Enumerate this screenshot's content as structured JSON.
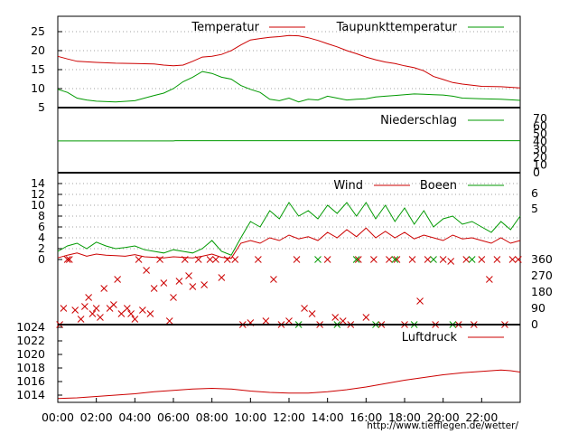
{
  "colors": {
    "temperature": "#cc0000",
    "dewpoint": "#009900",
    "precipitation": "#009900",
    "wind": "#cc0000",
    "gusts": "#009900",
    "direction_wind": "#cc0000",
    "direction_gusts": "#009900",
    "pressure": "#cc0000"
  },
  "credit": "http://www.tiefflegen.de/wetter/",
  "chart_data": [
    {
      "type": "line",
      "panel": "temperature",
      "x_unit": "hours",
      "x_range": [
        0,
        24
      ],
      "x_ticks": [
        "00:00",
        "02:00",
        "04:00",
        "06:00",
        "08:00",
        "10:00",
        "12:00",
        "14:00",
        "16:00",
        "18:00",
        "20:00",
        "22:00"
      ],
      "ylim": [
        5,
        28
      ],
      "y_ticks": [
        "5",
        "10",
        "15",
        "20",
        "25"
      ],
      "grid": true,
      "legend_position": "top",
      "series": [
        {
          "name": "Temperatur",
          "color": "#cc0000",
          "x": [
            0,
            0.5,
            1,
            2,
            3,
            4,
            5,
            5.5,
            6,
            6.5,
            7,
            7.5,
            8,
            8.5,
            9,
            9.5,
            10,
            10.5,
            11,
            11.5,
            12,
            12.5,
            13,
            13.5,
            14,
            14.5,
            15,
            15.5,
            16,
            16.5,
            17,
            17.5,
            18,
            18.5,
            19,
            19.5,
            20,
            20.5,
            21,
            22,
            23,
            24
          ],
          "y": [
            18.5,
            17.8,
            17.2,
            16.9,
            16.7,
            16.6,
            16.5,
            16.2,
            16.0,
            16.2,
            17.2,
            18.3,
            18.5,
            19.0,
            20.0,
            21.5,
            22.8,
            23.2,
            23.5,
            23.7,
            24.0,
            23.9,
            23.4,
            22.7,
            21.8,
            21.0,
            20.0,
            19.2,
            18.3,
            17.6,
            17.0,
            16.6,
            16.0,
            15.5,
            14.7,
            13.2,
            12.4,
            11.6,
            11.2,
            10.6,
            10.5,
            10.2
          ]
        },
        {
          "name": "Taupunkttemperatur",
          "color": "#009900",
          "x": [
            0,
            0.5,
            1,
            1.5,
            2,
            3,
            4,
            5,
            5.5,
            6,
            6.5,
            7,
            7.5,
            8,
            8.5,
            9,
            9.5,
            10,
            10.5,
            11,
            11.5,
            12,
            12.5,
            13,
            13.5,
            14,
            14.5,
            15,
            15.5,
            16,
            16.5,
            17,
            17.5,
            18,
            18.5,
            19,
            19.5,
            20,
            20.5,
            21,
            22,
            23,
            24
          ],
          "y": [
            9.8,
            9.0,
            7.5,
            7.0,
            6.7,
            6.5,
            6.8,
            8.2,
            8.8,
            10.0,
            11.8,
            13.0,
            14.5,
            14.0,
            13.0,
            12.5,
            10.8,
            9.8,
            9.0,
            7.2,
            6.8,
            7.5,
            6.5,
            7.2,
            7.0,
            8.0,
            7.5,
            7.0,
            7.2,
            7.3,
            7.8,
            8.0,
            8.2,
            8.4,
            8.6,
            8.5,
            8.4,
            8.3,
            8.0,
            7.5,
            7.3,
            7.2,
            6.9
          ]
        }
      ]
    },
    {
      "type": "line",
      "panel": "precipitation",
      "ylim": [
        0,
        70
      ],
      "y_ticks": [
        "0",
        "10",
        "20",
        "30",
        "40",
        "50",
        "60",
        "70"
      ],
      "y_axis_side": "right",
      "legend_position": "top",
      "series": [
        {
          "name": "Niederschlag",
          "color": "#009900",
          "x": [
            0,
            6,
            6.1,
            24
          ],
          "y": [
            41,
            41,
            41.3,
            41.3
          ]
        }
      ]
    },
    {
      "type": "line",
      "panel": "wind",
      "ylim": [
        0,
        15
      ],
      "y_ticks": [
        "0",
        "2",
        "4",
        "6",
        "8",
        "10",
        "12",
        "14"
      ],
      "y_ticks_right": [
        "5",
        "6"
      ],
      "grid": true,
      "legend_position": "top",
      "series": [
        {
          "name": "Wind",
          "color": "#cc0000",
          "x": [
            0,
            0.5,
            1,
            1.5,
            2,
            2.5,
            3,
            3.5,
            4,
            4.5,
            5,
            5.5,
            6,
            6.5,
            7,
            7.5,
            8,
            8.5,
            9,
            9.5,
            10,
            10.5,
            11,
            11.5,
            12,
            12.5,
            13,
            13.5,
            14,
            14.5,
            15,
            15.5,
            16,
            16.5,
            17,
            17.5,
            18,
            18.5,
            19,
            19.5,
            20,
            20.5,
            21,
            21.5,
            22,
            22.5,
            23,
            23.5,
            24
          ],
          "y": [
            0.3,
            0.8,
            1.2,
            0.6,
            1.0,
            0.8,
            0.7,
            0.6,
            0.9,
            0.5,
            0.4,
            0.3,
            0.5,
            0.4,
            0.3,
            0.6,
            1.0,
            0.4,
            0.2,
            3.0,
            3.5,
            3.0,
            4.0,
            3.5,
            4.5,
            3.8,
            4.2,
            3.5,
            5.0,
            4.0,
            5.5,
            4.2,
            5.8,
            4.0,
            5.2,
            4.0,
            5.0,
            3.8,
            4.5,
            4.0,
            3.5,
            4.5,
            3.8,
            4.0,
            3.5,
            3.0,
            4.0,
            3.0,
            3.5
          ]
        },
        {
          "name": "Boeen",
          "color": "#009900",
          "x": [
            0,
            0.5,
            1,
            1.5,
            2,
            2.5,
            3,
            3.5,
            4,
            4.5,
            5,
            5.5,
            6,
            6.5,
            7,
            7.5,
            8,
            8.5,
            9,
            9.5,
            10,
            10.5,
            11,
            11.5,
            12,
            12.5,
            13,
            13.5,
            14,
            14.5,
            15,
            15.5,
            16,
            16.5,
            17,
            17.5,
            18,
            18.5,
            19,
            19.5,
            20,
            20.5,
            21,
            21.5,
            22,
            22.5,
            23,
            23.5,
            24
          ],
          "y": [
            1.5,
            2.5,
            3.0,
            2.0,
            3.2,
            2.5,
            2.0,
            2.2,
            2.5,
            1.8,
            1.5,
            1.2,
            1.8,
            1.5,
            1.2,
            2.0,
            3.5,
            1.5,
            0.8,
            4.0,
            7.0,
            6.0,
            9.0,
            7.5,
            10.5,
            8.0,
            9.0,
            7.5,
            10.0,
            8.5,
            10.5,
            8.0,
            10.5,
            7.5,
            10.0,
            7.0,
            9.5,
            6.5,
            9.0,
            6.0,
            7.5,
            8.0,
            6.5,
            7.0,
            6.0,
            5.0,
            7.0,
            5.5,
            8.0
          ]
        }
      ]
    },
    {
      "type": "scatter",
      "panel": "wind_direction",
      "ylim": [
        0,
        360
      ],
      "y_ticks_right": [
        "0",
        "90",
        "180",
        "270",
        "360"
      ],
      "marker": "x",
      "series": [
        {
          "color": "#cc0000",
          "x": [
            0.1,
            0.3,
            0.5,
            0.6,
            0.9,
            1.2,
            1.4,
            1.6,
            1.8,
            2.0,
            2.2,
            2.4,
            2.7,
            2.9,
            3.1,
            3.3,
            3.6,
            3.8,
            4.0,
            4.2,
            4.4,
            4.6,
            4.8,
            5.0,
            5.3,
            5.5,
            5.8,
            6.0,
            6.3,
            6.6,
            6.8,
            7.0,
            7.3,
            7.6,
            7.9,
            8.2,
            8.5,
            8.8,
            9.2,
            9.6,
            10.0,
            10.4,
            10.8,
            11.2,
            11.6,
            12.0,
            12.4,
            12.8,
            13.2,
            13.6,
            14.0,
            14.4,
            14.8,
            15.2,
            15.6,
            16.0,
            16.4,
            16.8,
            17.2,
            17.6,
            18.0,
            18.4,
            18.8,
            19.2,
            19.6,
            20.0,
            20.4,
            20.8,
            21.2,
            21.6,
            22.0,
            22.4,
            22.8,
            23.2,
            23.6,
            23.9
          ],
          "y": [
            0,
            90,
            360,
            360,
            80,
            30,
            100,
            150,
            60,
            90,
            40,
            200,
            90,
            110,
            250,
            60,
            90,
            60,
            30,
            360,
            80,
            300,
            60,
            200,
            360,
            230,
            20,
            150,
            240,
            360,
            270,
            210,
            360,
            220,
            360,
            360,
            260,
            360,
            360,
            0,
            10,
            360,
            20,
            250,
            0,
            20,
            360,
            90,
            60,
            0,
            360,
            40,
            20,
            0,
            360,
            40,
            360,
            0,
            360,
            360,
            0,
            360,
            130,
            360,
            0,
            360,
            350,
            0,
            360,
            0,
            360,
            250,
            360,
            0,
            360,
            360
          ]
        },
        {
          "color": "#009900",
          "x": [
            12.5,
            13.5,
            14.5,
            15.5,
            16.5,
            17.5,
            18.5,
            19.5,
            20.5,
            21.5
          ],
          "y": [
            0,
            360,
            0,
            360,
            0,
            360,
            0,
            360,
            0,
            360
          ]
        }
      ]
    },
    {
      "type": "line",
      "panel": "pressure",
      "ylim": [
        1012.5,
        1025
      ],
      "y_ticks": [
        "1014",
        "1016",
        "1018",
        "1020",
        "1022",
        "1024"
      ],
      "legend_position": "top",
      "series": [
        {
          "name": "Luftdruck",
          "color": "#cc0000",
          "x": [
            0,
            1,
            2,
            3,
            4,
            5,
            6,
            7,
            8,
            9,
            10,
            11,
            12,
            13,
            14,
            15,
            16,
            17,
            18,
            19,
            20,
            21,
            22,
            23,
            23.5,
            24
          ],
          "y": [
            1013.5,
            1013.6,
            1013.8,
            1014.0,
            1014.2,
            1014.5,
            1014.7,
            1014.9,
            1015.0,
            1014.9,
            1014.6,
            1014.4,
            1014.3,
            1014.3,
            1014.5,
            1014.8,
            1015.2,
            1015.7,
            1016.2,
            1016.6,
            1017.0,
            1017.3,
            1017.5,
            1017.7,
            1017.6,
            1017.4
          ]
        }
      ]
    }
  ]
}
